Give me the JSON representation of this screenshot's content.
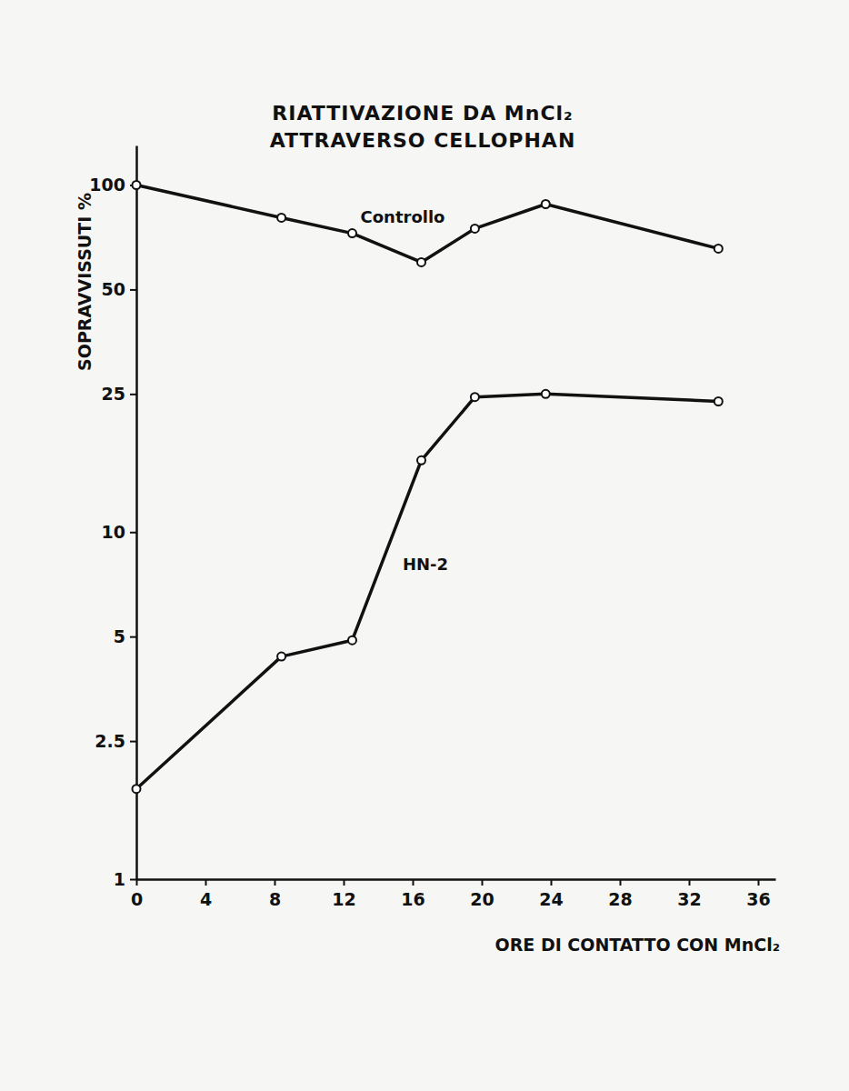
{
  "chart_data": {
    "type": "line",
    "title": "RIATTIVAZIONE DA MnCl₂",
    "subtitle": "ATTRAVERSO CELLOPHAN",
    "x_label": "ORE DI CONTATTO CON MnCl₂",
    "y_label": "SOPRAVVISSUTI %",
    "x": [
      0,
      8.4,
      12.5,
      16.5,
      19.6,
      23.7,
      33.7
    ],
    "series": [
      {
        "name": "Controllo",
        "color": "#111111",
        "values": [
          100,
          80.5,
          72.6,
          59.9,
          74.9,
          88.1,
          65.6
        ]
      },
      {
        "name": "HN-2",
        "color": "#111111",
        "values": [
          1.82,
          4.38,
          4.88,
          16.1,
          24.5,
          25.0,
          23.8
        ]
      }
    ],
    "xlim": [
      0,
      37
    ],
    "xticks": [
      0,
      4,
      8,
      12,
      16,
      20,
      24,
      28,
      32,
      36
    ],
    "ylim": [
      1,
      130
    ],
    "yticks": [
      1,
      2.5,
      5,
      10,
      25,
      50,
      100
    ],
    "log": "y",
    "grid": false,
    "marker": "circle"
  }
}
